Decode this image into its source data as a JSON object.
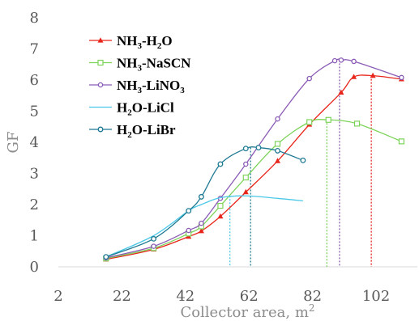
{
  "chart_data": {
    "type": "line",
    "title": "",
    "xlabel": "Collector area, m",
    "xlabel_superscript": "2",
    "ylabel": "GF",
    "xlim": [
      2,
      115
    ],
    "ylim": [
      0,
      8
    ],
    "x_ticks": [
      2,
      22,
      42,
      62,
      82,
      102
    ],
    "y_ticks": [
      0,
      1,
      2,
      3,
      4,
      5,
      6,
      7,
      8
    ],
    "grid": false,
    "legend_position": "top-left",
    "series": [
      {
        "name": "NH3-H2O",
        "label_parts": [
          [
            "NH",
            "n"
          ],
          [
            "3",
            "sub"
          ],
          [
            "-H",
            "n"
          ],
          [
            "2",
            "sub"
          ],
          [
            "O",
            "n"
          ]
        ],
        "color": "#e8251b",
        "marker": "triangle",
        "x": [
          17,
          32,
          43,
          47,
          53,
          61,
          71,
          81,
          91,
          95,
          101,
          110
        ],
        "y": [
          0.24,
          0.56,
          0.97,
          1.15,
          1.62,
          2.4,
          3.4,
          4.57,
          5.6,
          6.1,
          6.14,
          6.03
        ],
        "optimum_x": 100.5,
        "optimum_y": 6.14
      },
      {
        "name": "NH3-NaSCN",
        "label_parts": [
          [
            "NH",
            "n"
          ],
          [
            "3",
            "sub"
          ],
          [
            "-NaSCN",
            "n"
          ]
        ],
        "color": "#7dd35a",
        "marker": "square",
        "x": [
          17,
          32,
          43,
          47,
          53,
          61,
          71,
          81,
          87,
          96,
          110
        ],
        "y": [
          0.27,
          0.6,
          1.07,
          1.3,
          1.96,
          2.87,
          3.95,
          4.65,
          4.72,
          4.6,
          4.03
        ],
        "optimum_x": 86.5,
        "optimum_y": 4.72
      },
      {
        "name": "NH3-LiNO3",
        "label_parts": [
          [
            "NH",
            "n"
          ],
          [
            "3",
            "sub"
          ],
          [
            "-LiNO",
            "n"
          ],
          [
            "3",
            "sub"
          ]
        ],
        "color": "#8a5bb5",
        "marker": "diamond",
        "x": [
          17,
          32,
          43,
          47,
          53,
          61,
          71,
          81,
          89,
          91,
          95,
          110
        ],
        "y": [
          0.29,
          0.66,
          1.17,
          1.4,
          2.2,
          3.3,
          4.75,
          6.05,
          6.62,
          6.64,
          6.6,
          6.08
        ],
        "optimum_x": 90.5,
        "optimum_y": 6.64
      },
      {
        "name": "H2O-LiCl",
        "label_parts": [
          [
            "H",
            "n"
          ],
          [
            "2",
            "sub"
          ],
          [
            "O-LiCl",
            "n"
          ]
        ],
        "color": "#4bc8e8",
        "marker": "none",
        "x": [
          17,
          32,
          43,
          47,
          53,
          61,
          71,
          79
        ],
        "y": [
          0.32,
          1.0,
          1.8,
          2.0,
          2.22,
          2.28,
          2.2,
          2.12
        ],
        "optimum_x": 56,
        "optimum_y": 2.28
      },
      {
        "name": "H2O-LiBr",
        "label_parts": [
          [
            "H",
            "n"
          ],
          [
            "2",
            "sub"
          ],
          [
            "O-LiBr",
            "n"
          ]
        ],
        "color": "#1f7a93",
        "marker": "circle",
        "x": [
          17,
          32,
          43,
          47,
          53,
          61,
          65,
          71,
          79
        ],
        "y": [
          0.32,
          0.9,
          1.8,
          2.25,
          3.3,
          3.8,
          3.83,
          3.73,
          3.42
        ],
        "optimum_x": 62.5,
        "optimum_y": 3.83
      }
    ]
  }
}
